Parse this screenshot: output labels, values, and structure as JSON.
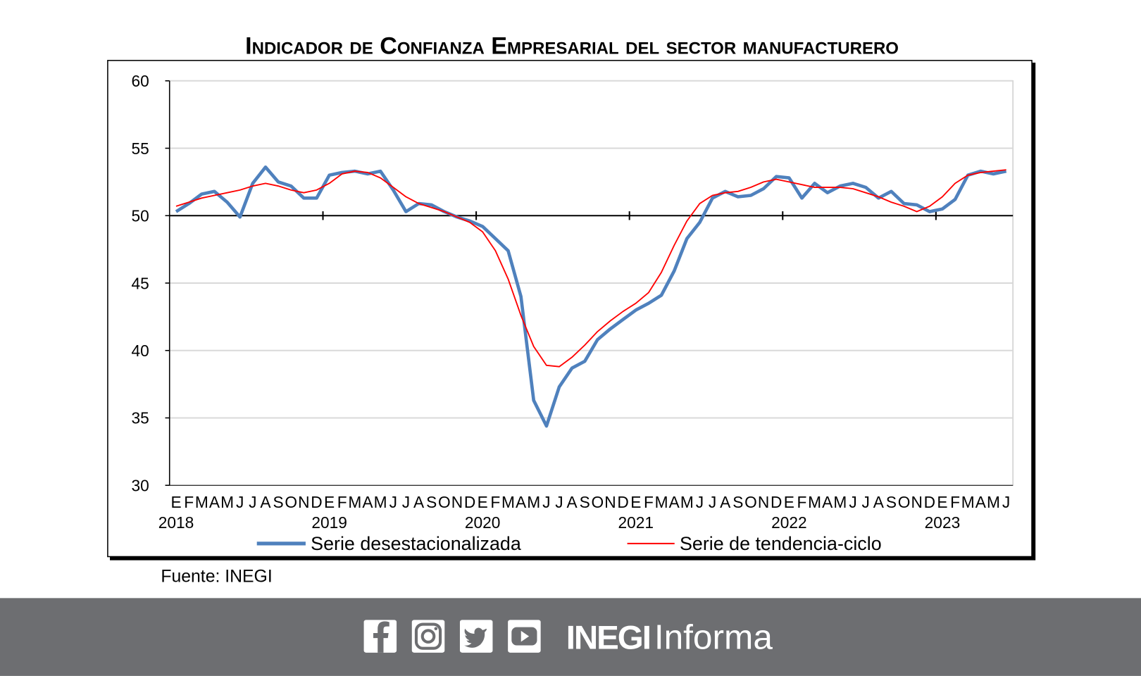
{
  "chart_data": {
    "type": "line",
    "title": "Indicador de Confianza Empresarial del sector manufacturero",
    "ylim": [
      30,
      60
    ],
    "yticks": [
      "30",
      "35",
      "40",
      "45",
      "50",
      "55",
      "60"
    ],
    "grid": true,
    "reference_line": 50,
    "month_letters": [
      "E",
      "F",
      "M",
      "A",
      "M",
      "J",
      "J",
      "A",
      "S",
      "O",
      "N",
      "D"
    ],
    "years": [
      "2018",
      "2019",
      "2020",
      "2021",
      "2022",
      "2023"
    ],
    "x_start": "2018-01",
    "x_end": "2023-06",
    "legend_position": "bottom",
    "series": [
      {
        "name": "Serie desestacionalizada",
        "color": "#4f81bd",
        "values": [
          50.3,
          50.9,
          51.6,
          51.8,
          51.0,
          49.9,
          52.4,
          53.6,
          52.5,
          52.2,
          51.3,
          51.3,
          53.0,
          53.2,
          53.3,
          53.1,
          53.3,
          51.9,
          50.3,
          50.9,
          50.8,
          50.3,
          49.9,
          49.6,
          49.2,
          48.3,
          47.4,
          44.0,
          36.3,
          34.4,
          37.3,
          38.7,
          39.2,
          40.8,
          41.6,
          42.3,
          43.0,
          43.5,
          44.1,
          45.9,
          48.3,
          49.5,
          51.3,
          51.8,
          51.4,
          51.5,
          52.0,
          52.9,
          52.8,
          51.3,
          52.4,
          51.7,
          52.2,
          52.4,
          52.1,
          51.3,
          51.8,
          50.9,
          50.8,
          50.3,
          50.5,
          51.2,
          53.0,
          53.3,
          53.1,
          53.3
        ]
      },
      {
        "name": "Serie de tendencia-ciclo",
        "color": "#ff0000",
        "values": [
          50.7,
          51.0,
          51.3,
          51.5,
          51.7,
          51.9,
          52.2,
          52.4,
          52.2,
          51.9,
          51.7,
          51.9,
          52.4,
          53.1,
          53.3,
          53.2,
          52.8,
          52.1,
          51.4,
          50.9,
          50.6,
          50.3,
          49.9,
          49.5,
          48.8,
          47.4,
          45.3,
          42.6,
          40.3,
          38.9,
          38.8,
          39.5,
          40.4,
          41.4,
          42.2,
          42.9,
          43.5,
          44.3,
          45.8,
          47.8,
          49.6,
          50.9,
          51.5,
          51.7,
          51.8,
          52.1,
          52.5,
          52.7,
          52.5,
          52.3,
          52.1,
          52.1,
          52.1,
          52.0,
          51.7,
          51.4,
          51.0,
          50.7,
          50.3,
          50.7,
          51.4,
          52.4,
          53.0,
          53.2,
          53.3,
          53.4
        ]
      }
    ],
    "source": "Fuente: INEGI"
  },
  "footer": {
    "background": "#6d6e71",
    "icons": [
      "facebook-icon",
      "instagram-icon",
      "twitter-icon",
      "youtube-icon"
    ],
    "brand_bold": "INEGI",
    "brand_light": "Informa"
  }
}
